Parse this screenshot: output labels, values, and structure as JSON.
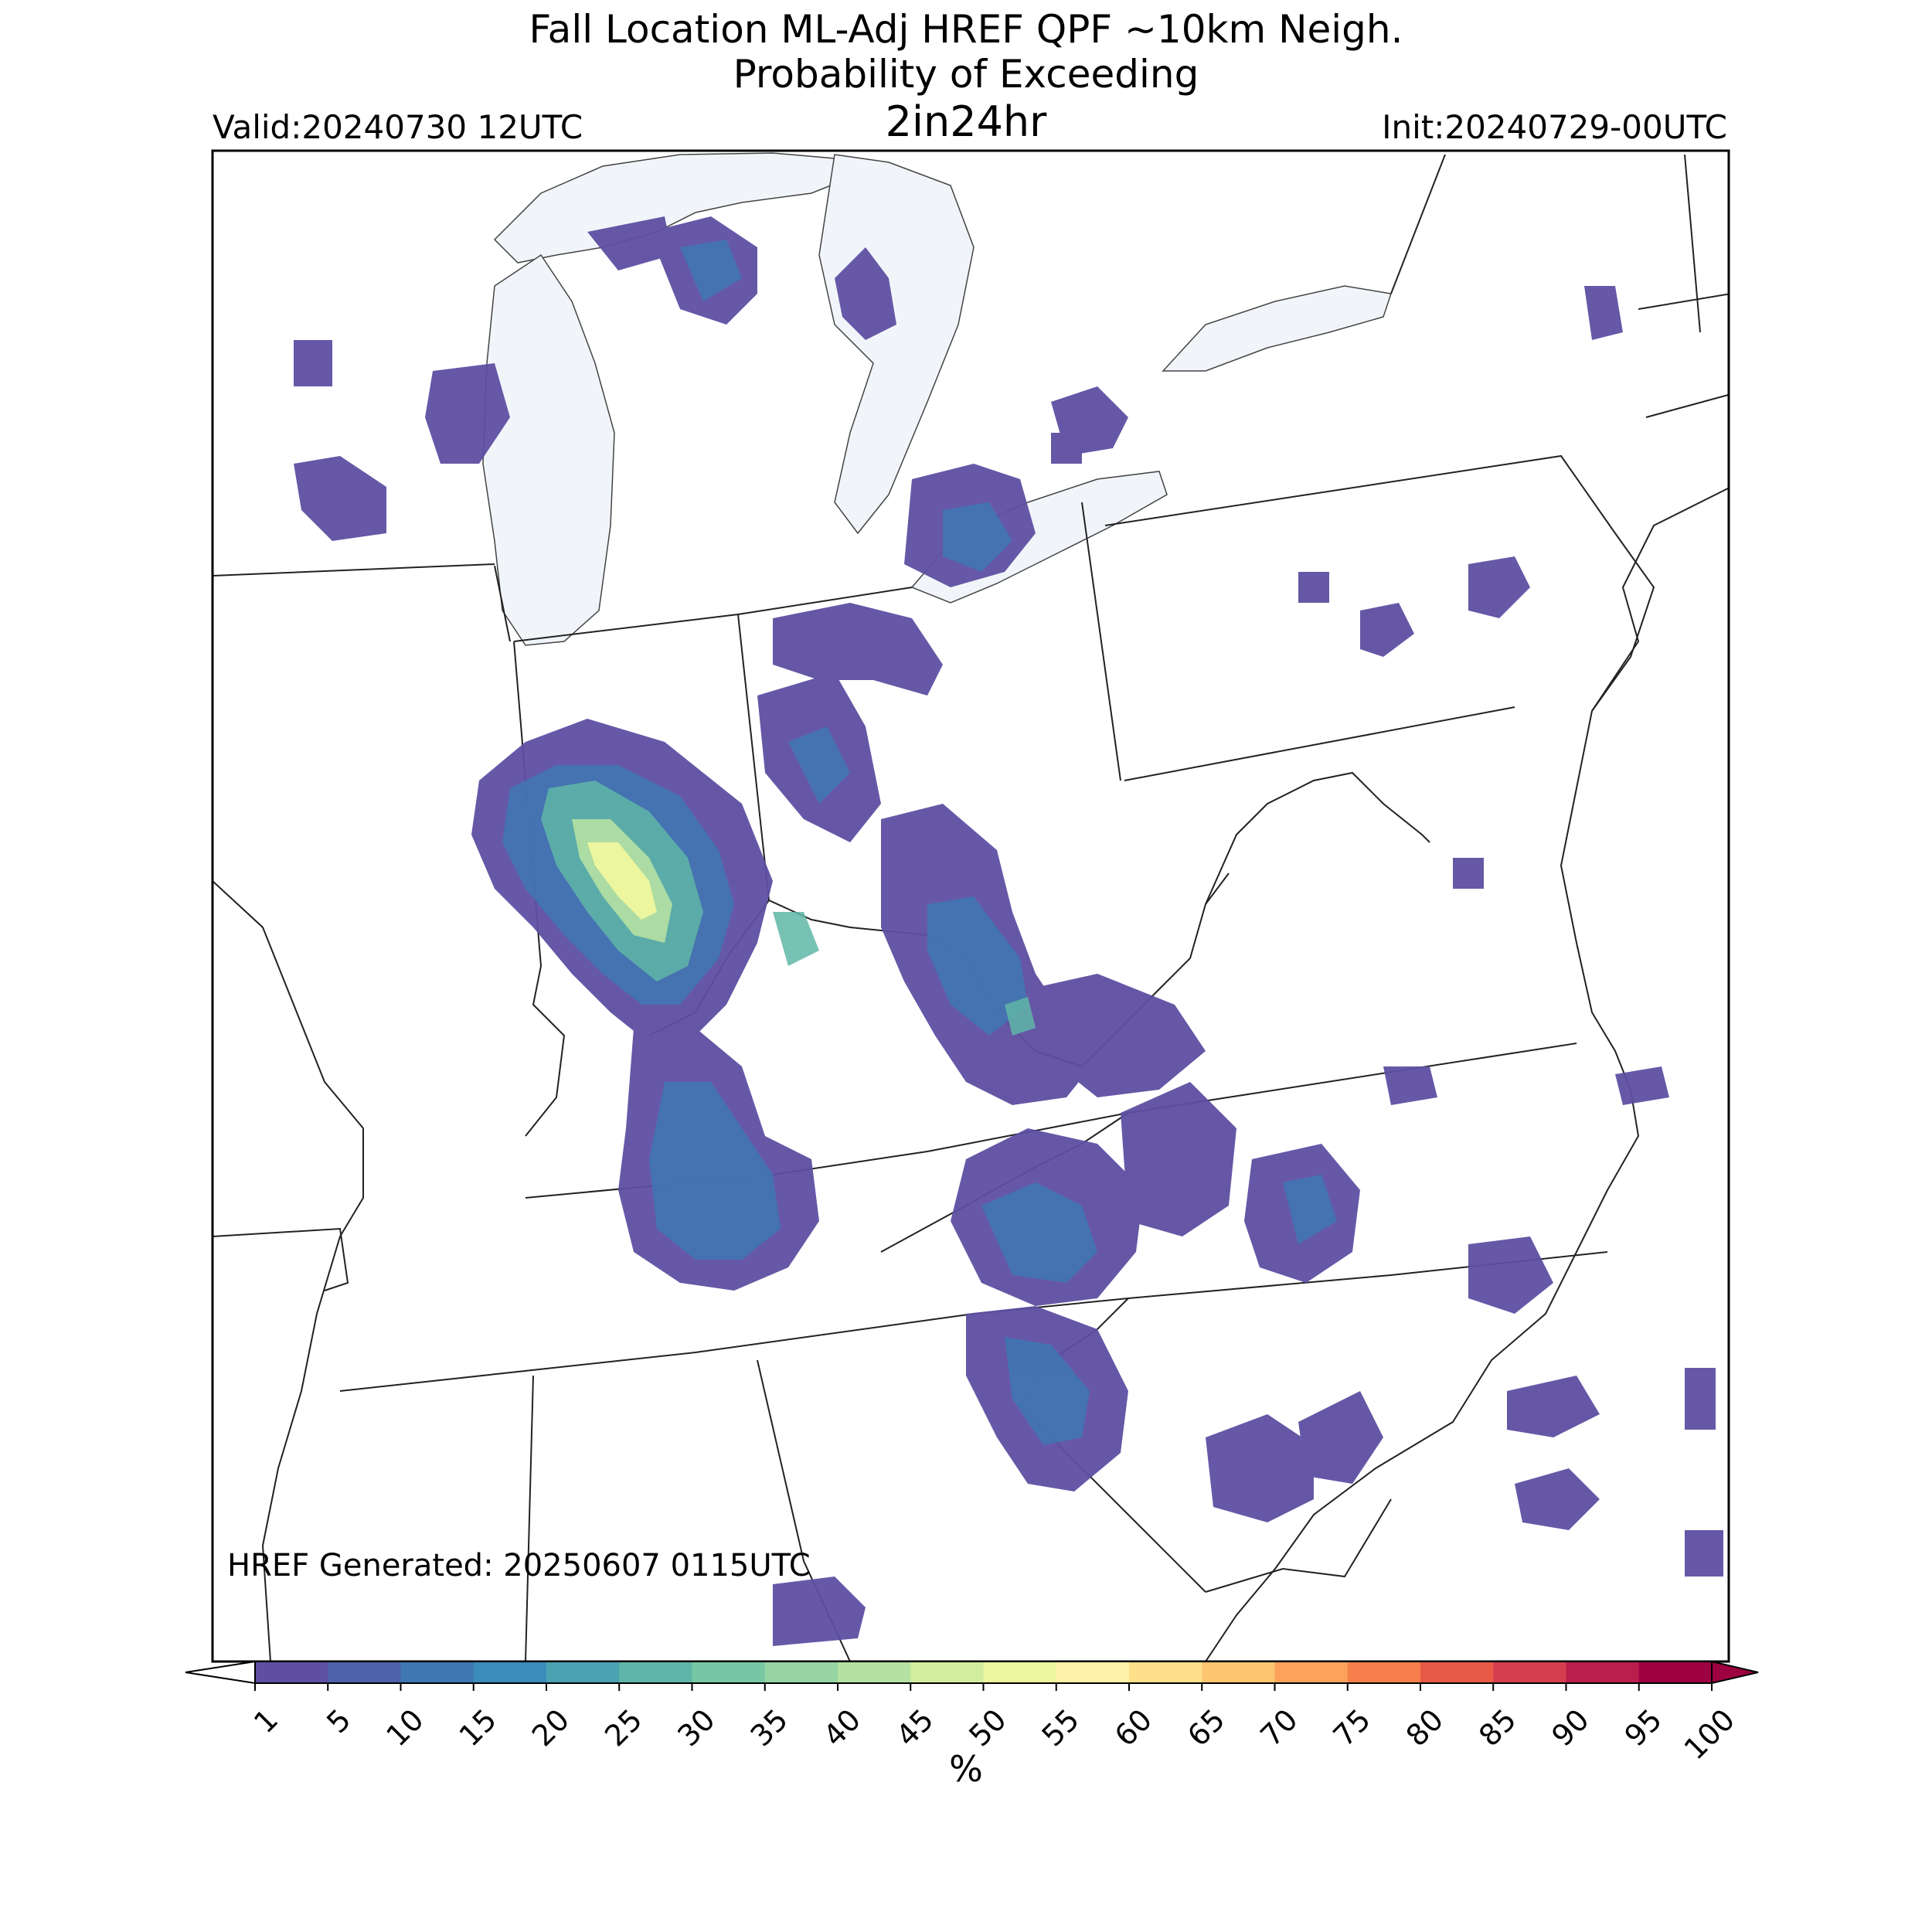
{
  "header": {
    "title_line1": "Fall Location ML-Adj HREF QPF ~10km Neigh.",
    "title_line2": "Probability of Exceeding",
    "title_line3": "2in24hr",
    "valid": "Valid:20240730 12UTC",
    "init": "Init:20240729-00UTC"
  },
  "footer": {
    "generated": "HREF Generated: 20250607 0115UTC"
  },
  "colorbar": {
    "ticks": [
      "1",
      "5",
      "10",
      "15",
      "20",
      "25",
      "30",
      "35",
      "40",
      "45",
      "50",
      "55",
      "60",
      "65",
      "70",
      "75",
      "80",
      "85",
      "90",
      "95",
      "100"
    ],
    "colors": [
      "#5e4fa2",
      "#4f62ab",
      "#3f77b3",
      "#3b8cb9",
      "#4aa2b1",
      "#5fb6a8",
      "#78c7a4",
      "#97d4a4",
      "#b5e1a2",
      "#d2ed9d",
      "#ecf69f",
      "#fff2a8",
      "#fee08b",
      "#fdc56f",
      "#fca25a",
      "#f67f4b",
      "#e65a47",
      "#d53e4f",
      "#ba1f4c",
      "#9e0142"
    ],
    "unit": "%"
  }
}
